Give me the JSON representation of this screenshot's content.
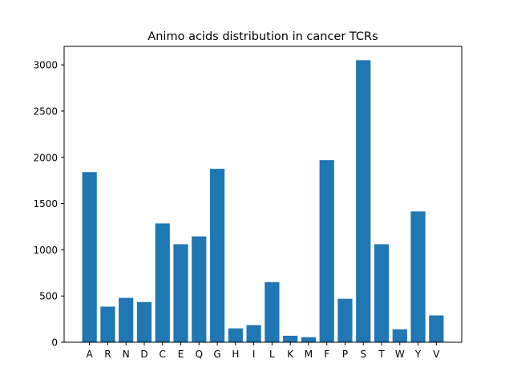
{
  "chart_data": {
    "type": "bar",
    "title": "Animo acids distribution in cancer TCRs",
    "xlabel": "",
    "ylabel": "",
    "categories": [
      "A",
      "R",
      "N",
      "D",
      "C",
      "E",
      "Q",
      "G",
      "H",
      "I",
      "L",
      "K",
      "M",
      "F",
      "P",
      "S",
      "T",
      "W",
      "Y",
      "V"
    ],
    "values": [
      1840,
      385,
      480,
      435,
      1285,
      1060,
      1145,
      1875,
      150,
      185,
      650,
      70,
      55,
      1970,
      470,
      3050,
      1060,
      140,
      1415,
      290
    ],
    "ylim": [
      0,
      3200
    ],
    "yticks": [
      0,
      500,
      1000,
      1500,
      2000,
      2500,
      3000
    ],
    "bar_color": "#1f77b4",
    "grid": false
  }
}
